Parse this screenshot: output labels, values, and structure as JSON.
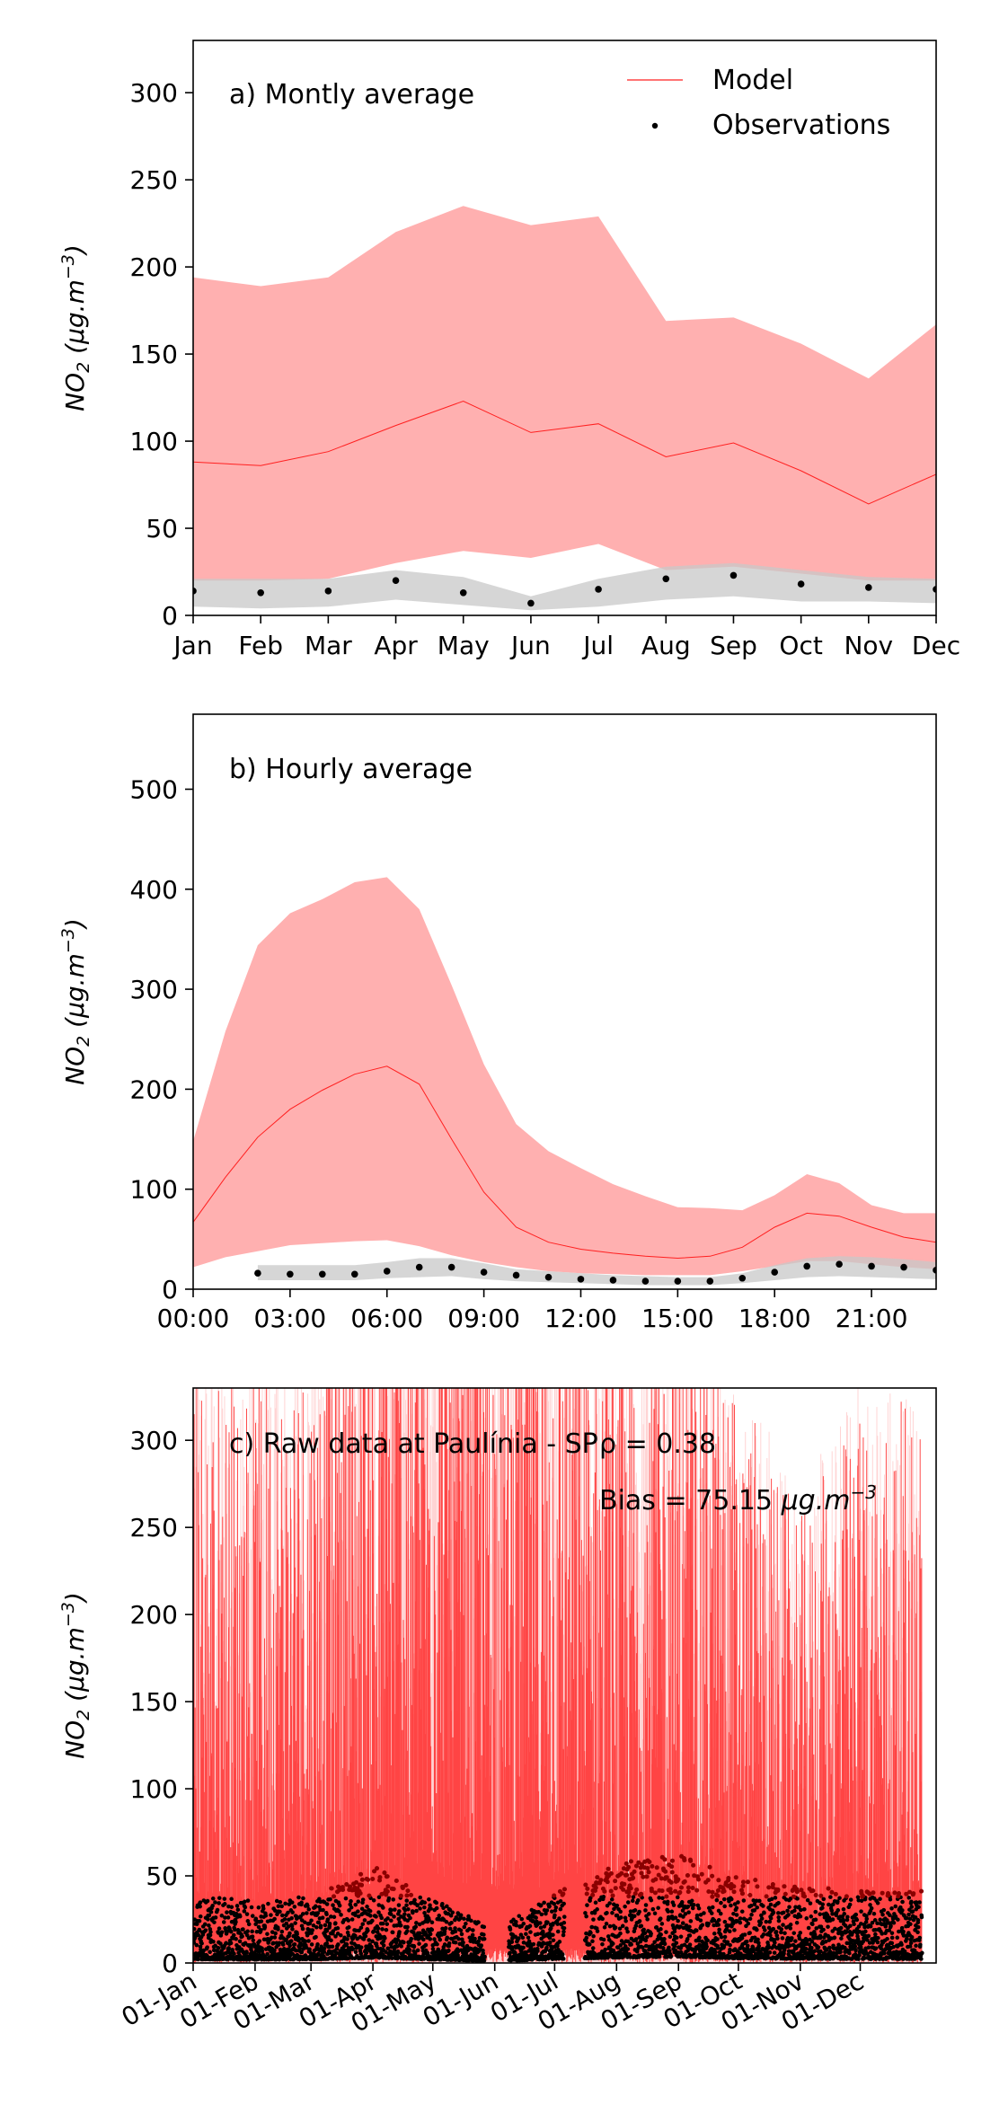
{
  "figure": {
    "ylabel": "NO",
    "ylabel_sub": "2",
    "ylabel_units": " (μg.m",
    "ylabel_exp": "−3",
    "ylabel_close": ")"
  },
  "chart_data": [
    {
      "type": "line",
      "panel_label": "a) Montly average",
      "legend": {
        "placement": "top-right",
        "entries": [
          {
            "name": "Model",
            "color": "#ff3030",
            "marker": "line"
          },
          {
            "name": "Observations",
            "color": "#000000",
            "marker": "dot"
          }
        ]
      },
      "categories": [
        "Jan",
        "Feb",
        "Mar",
        "Apr",
        "May",
        "Jun",
        "Jul",
        "Aug",
        "Sep",
        "Oct",
        "Nov",
        "Dec"
      ],
      "ylim": [
        0,
        330
      ],
      "yticks": [
        0,
        50,
        100,
        150,
        200,
        250,
        300
      ],
      "series": [
        {
          "name": "Model",
          "values": [
            88,
            86,
            94,
            109,
            123,
            105,
            110,
            91,
            99,
            83,
            64,
            81
          ],
          "band_low": [
            20,
            20,
            21,
            30,
            37,
            33,
            41,
            26,
            28,
            24,
            20,
            20
          ],
          "band_high": [
            194,
            189,
            194,
            220,
            235,
            224,
            229,
            169,
            171,
            156,
            136,
            167
          ]
        },
        {
          "name": "Observations",
          "values": [
            14,
            13,
            14,
            20,
            13,
            7,
            15,
            21,
            23,
            18,
            16,
            15
          ],
          "band_low": [
            5,
            4,
            5,
            9,
            6,
            3,
            5,
            9,
            11,
            8,
            8,
            7
          ],
          "band_high": [
            21,
            21,
            21,
            26,
            22,
            11,
            21,
            28,
            30,
            26,
            22,
            21
          ]
        }
      ]
    },
    {
      "type": "line",
      "panel_label": "b) Hourly average",
      "x_ticklabels": [
        "00:00",
        "03:00",
        "06:00",
        "09:00",
        "12:00",
        "15:00",
        "18:00",
        "21:00"
      ],
      "ylim": [
        0,
        575
      ],
      "yticks": [
        0,
        100,
        200,
        300,
        400,
        500
      ],
      "series": [
        {
          "name": "Model",
          "values": [
            67,
            112,
            152,
            180,
            199,
            215,
            223,
            205,
            150,
            97,
            62,
            47,
            40,
            36,
            33,
            31,
            33,
            42,
            62,
            76,
            73,
            62,
            52,
            47
          ],
          "band_low": [
            22,
            32,
            38,
            44,
            46,
            48,
            49,
            43,
            34,
            27,
            22,
            18,
            16,
            15,
            14,
            14,
            14,
            18,
            23,
            28,
            28,
            25,
            22,
            20
          ],
          "band_high": [
            148,
            258,
            344,
            376,
            390,
            407,
            412,
            380,
            304,
            225,
            165,
            138,
            121,
            105,
            93,
            82,
            81,
            79,
            94,
            115,
            106,
            84,
            76,
            76
          ]
        },
        {
          "name": "Observations",
          "values": [
            null,
            null,
            16,
            15,
            15,
            15,
            18,
            22,
            22,
            17,
            14,
            12,
            10,
            9,
            8,
            8,
            8,
            11,
            17,
            23,
            25,
            23,
            22,
            19
          ],
          "band_low": [
            null,
            null,
            9,
            9,
            9,
            9,
            11,
            12,
            13,
            10,
            8,
            7,
            6,
            5,
            4,
            4,
            4,
            6,
            9,
            12,
            13,
            12,
            11,
            10
          ],
          "band_high": [
            null,
            null,
            24,
            24,
            24,
            24,
            27,
            31,
            31,
            26,
            20,
            18,
            16,
            14,
            13,
            12,
            12,
            16,
            24,
            31,
            33,
            32,
            30,
            27
          ]
        }
      ]
    },
    {
      "type": "line",
      "panel_label": "c) Raw data at Paulínia - SP",
      "stat_r": "ρ = 0.38",
      "stat_bias_text": "Bias = 75.15 ",
      "stat_bias_units": "μg.m",
      "stat_bias_exp": "−3",
      "x_ticklabels": [
        "01-Jan",
        "01-Feb",
        "01-Mar",
        "01-Apr",
        "01-May",
        "01-Jun",
        "01-Jul",
        "01-Aug",
        "01-Sep",
        "01-Oct",
        "01-Nov",
        "01-Dec"
      ],
      "x_tick_days": [
        0,
        31,
        59,
        90,
        120,
        151,
        181,
        212,
        243,
        273,
        304,
        334
      ],
      "x_range_days": [
        0,
        372
      ],
      "ylim": [
        0,
        330
      ],
      "yticks": [
        0,
        50,
        100,
        150,
        200,
        250,
        300
      ],
      "series": [
        {
          "name": "Model",
          "description": "hourly model NO2 (dense red lines)"
        },
        {
          "name": "Observations",
          "description": "hourly observed NO2 (black/dark-red dots)"
        }
      ]
    }
  ]
}
